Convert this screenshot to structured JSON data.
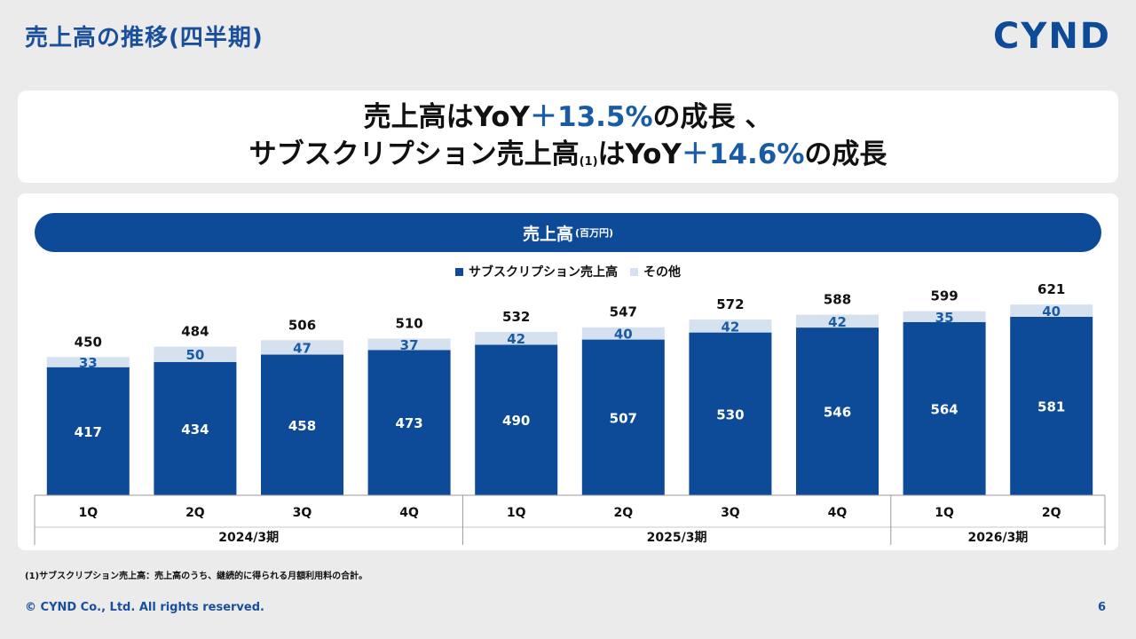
{
  "page": {
    "title": "売上高の推移(四半期)",
    "logo": "CYND",
    "headline": {
      "line1_prefix": "売上高はYoY",
      "line1_value": "＋13.5%",
      "line1_suffix": "の成長 、",
      "line2_prefix": "サブスクリプション売上高",
      "line2_footnote_mark": "(1)",
      "line2_mid": "はYoY",
      "line2_value": "＋14.6%",
      "line2_suffix": "の成長"
    },
    "footnote": "(1)サブスクリプション売上高：売上高のうち、継続的に得られる月額利用料の合計。",
    "copyright": "© CYND Co., Ltd. All rights reserved.",
    "page_number": "6"
  },
  "chart_data": {
    "type": "bar",
    "stacked": true,
    "title": "売上高",
    "unit": "(百万円)",
    "categories": [
      "1Q",
      "2Q",
      "3Q",
      "4Q",
      "1Q",
      "2Q",
      "3Q",
      "4Q",
      "1Q",
      "2Q"
    ],
    "groups": [
      {
        "label": "2024/3期",
        "count": 4
      },
      {
        "label": "2025/3期",
        "count": 4
      },
      {
        "label": "2026/3期",
        "count": 2
      }
    ],
    "series": [
      {
        "name": "サブスクリプション売上高",
        "color": "#0d4a98",
        "values": [
          417,
          434,
          458,
          473,
          490,
          507,
          530,
          546,
          564,
          581
        ]
      },
      {
        "name": "その他",
        "color": "#d6e1ef",
        "values": [
          33,
          50,
          47,
          37,
          42,
          40,
          42,
          42,
          35,
          40
        ]
      }
    ],
    "totals": [
      450,
      484,
      506,
      510,
      532,
      547,
      572,
      588,
      599,
      621
    ],
    "ylim": [
      0,
      700
    ],
    "legend_position": "top-center",
    "grid": false
  }
}
